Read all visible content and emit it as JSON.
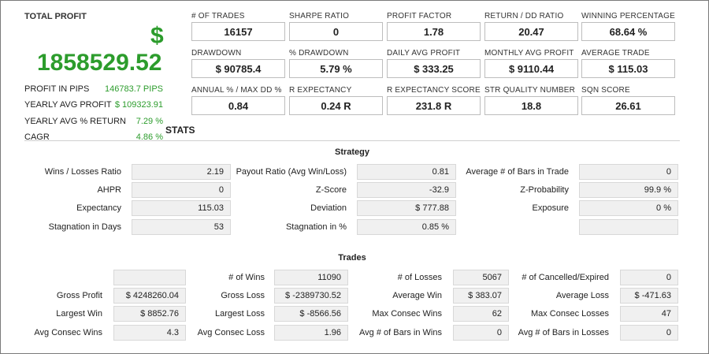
{
  "summary": {
    "title": "TOTAL PROFIT",
    "currency_symbol": "$",
    "total_profit": "1858529.52",
    "rows": [
      {
        "label": "PROFIT IN PIPS",
        "value": "146783.7 PIPS"
      },
      {
        "label": "YEARLY AVG PROFIT",
        "value": "$ 109323.91"
      },
      {
        "label": "YEARLY AVG % RETURN",
        "value": "7.29 %"
      },
      {
        "label": "CAGR",
        "value": "4.86 %"
      }
    ],
    "accent_color": "#2c9c2c"
  },
  "metrics": [
    {
      "label": "# OF TRADES",
      "value": "16157"
    },
    {
      "label": "SHARPE RATIO",
      "value": "0"
    },
    {
      "label": "PROFIT FACTOR",
      "value": "1.78"
    },
    {
      "label": "RETURN / DD RATIO",
      "value": "20.47"
    },
    {
      "label": "WINNING PERCENTAGE",
      "value": "68.64 %"
    },
    {
      "label": "DRAWDOWN",
      "value": "$ 90785.4"
    },
    {
      "label": "% DRAWDOWN",
      "value": "5.79 %"
    },
    {
      "label": "DAILY AVG PROFIT",
      "value": "$ 333.25"
    },
    {
      "label": "MONTHLY AVG PROFIT",
      "value": "$ 9110.44"
    },
    {
      "label": "AVERAGE TRADE",
      "value": "$ 115.03"
    },
    {
      "label": "ANNUAL % / MAX DD %",
      "value": "0.84"
    },
    {
      "label": "R EXPECTANCY",
      "value": "0.24 R"
    },
    {
      "label": "R EXPECTANCY SCORE",
      "value": "231.8 R"
    },
    {
      "label": "STR QUALITY NUMBER",
      "value": "18.8"
    },
    {
      "label": "SQN SCORE",
      "value": "26.61"
    }
  ],
  "stats": {
    "title": "STATS",
    "strategy": {
      "title": "Strategy",
      "rows": [
        [
          {
            "label": "Wins / Losses Ratio",
            "value": "2.19"
          },
          {
            "label": "Payout Ratio (Avg Win/Loss)",
            "value": "0.81"
          },
          {
            "label": "Average # of Bars in Trade",
            "value": "0"
          }
        ],
        [
          {
            "label": "AHPR",
            "value": "0"
          },
          {
            "label": "Z-Score",
            "value": "-32.9"
          },
          {
            "label": "Z-Probability",
            "value": "99.9 %"
          }
        ],
        [
          {
            "label": "Expectancy",
            "value": "115.03"
          },
          {
            "label": "Deviation",
            "value": "$ 777.88"
          },
          {
            "label": "Exposure",
            "value": "0 %"
          }
        ],
        [
          {
            "label": "Stagnation in Days",
            "value": "53"
          },
          {
            "label": "Stagnation in %",
            "value": "0.85 %"
          },
          {
            "label": "",
            "value": ""
          }
        ]
      ]
    },
    "trades": {
      "title": "Trades",
      "rows": [
        [
          {
            "label": "",
            "value": ""
          },
          {
            "label": "# of Wins",
            "value": "11090"
          },
          {
            "label": "# of Losses",
            "value": "5067"
          },
          {
            "label": "# of Cancelled/Expired",
            "value": "0"
          }
        ],
        [
          {
            "label": "Gross Profit",
            "value": "$ 4248260.04"
          },
          {
            "label": "Gross Loss",
            "value": "$ -2389730.52"
          },
          {
            "label": "Average Win",
            "value": "$ 383.07"
          },
          {
            "label": "Average Loss",
            "value": "$ -471.63"
          }
        ],
        [
          {
            "label": "Largest Win",
            "value": "$ 8852.76"
          },
          {
            "label": "Largest Loss",
            "value": "$ -8566.56"
          },
          {
            "label": "Max Consec Wins",
            "value": "62"
          },
          {
            "label": "Max Consec Losses",
            "value": "47"
          }
        ],
        [
          {
            "label": "Avg Consec Wins",
            "value": "4.3"
          },
          {
            "label": "Avg Consec Loss",
            "value": "1.96"
          },
          {
            "label": "Avg # of Bars in Wins",
            "value": "0"
          },
          {
            "label": "Avg # of Bars in Losses",
            "value": "0"
          }
        ]
      ]
    }
  }
}
